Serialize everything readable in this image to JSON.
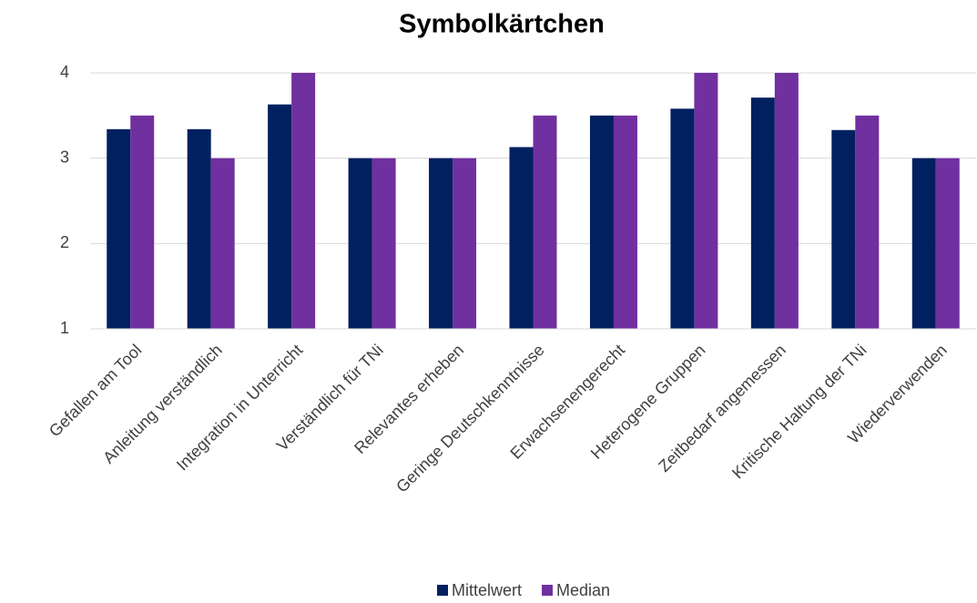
{
  "chart_data": {
    "type": "bar",
    "title": "Symbolkärtchen",
    "categories": [
      "Gefallen am Tool",
      "Anleitung verständlich",
      "Integration in Unterricht",
      "Verständlich für TNi",
      "Relevantes erheben",
      "Geringe Deutschkenntnisse",
      "Erwachsenengerecht",
      "Heterogene Gruppen",
      "Zeitbedarf angemessen",
      "Kritische Haltung der TNi",
      "Wiederverwenden"
    ],
    "series": [
      {
        "name": "Mittelwert",
        "color": "#002060",
        "values": [
          3.34,
          3.34,
          3.63,
          3,
          3,
          3.13,
          3.5,
          3.58,
          3.71,
          3.33,
          3
        ]
      },
      {
        "name": "Median",
        "color": "#7030a0",
        "values": [
          3.5,
          3,
          4,
          3,
          3,
          3.5,
          3.5,
          4,
          4,
          3.5,
          3
        ]
      }
    ],
    "ylim": [
      1,
      4
    ],
    "yticks": [
      1,
      2,
      3,
      4
    ],
    "grid": true,
    "legend": "bottom"
  }
}
